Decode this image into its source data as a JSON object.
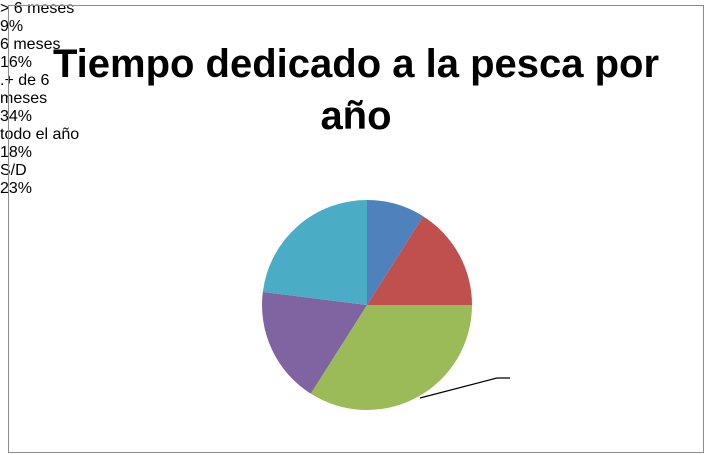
{
  "chart_data": {
    "type": "pie",
    "title": "Tiempo dedicado a la pesca por año",
    "categories": [
      "> 6 meses",
      "6 meses",
      ".+ de 6 meses",
      "todo el año",
      "S/D"
    ],
    "values": [
      9,
      16,
      34,
      18,
      23
    ],
    "value_labels": [
      "9%",
      "16%",
      "34%",
      "18%",
      "23%"
    ],
    "colors": [
      "#4f81bd",
      "#c0504d",
      "#9bbb59",
      "#8064a2",
      "#4bacc6"
    ]
  }
}
